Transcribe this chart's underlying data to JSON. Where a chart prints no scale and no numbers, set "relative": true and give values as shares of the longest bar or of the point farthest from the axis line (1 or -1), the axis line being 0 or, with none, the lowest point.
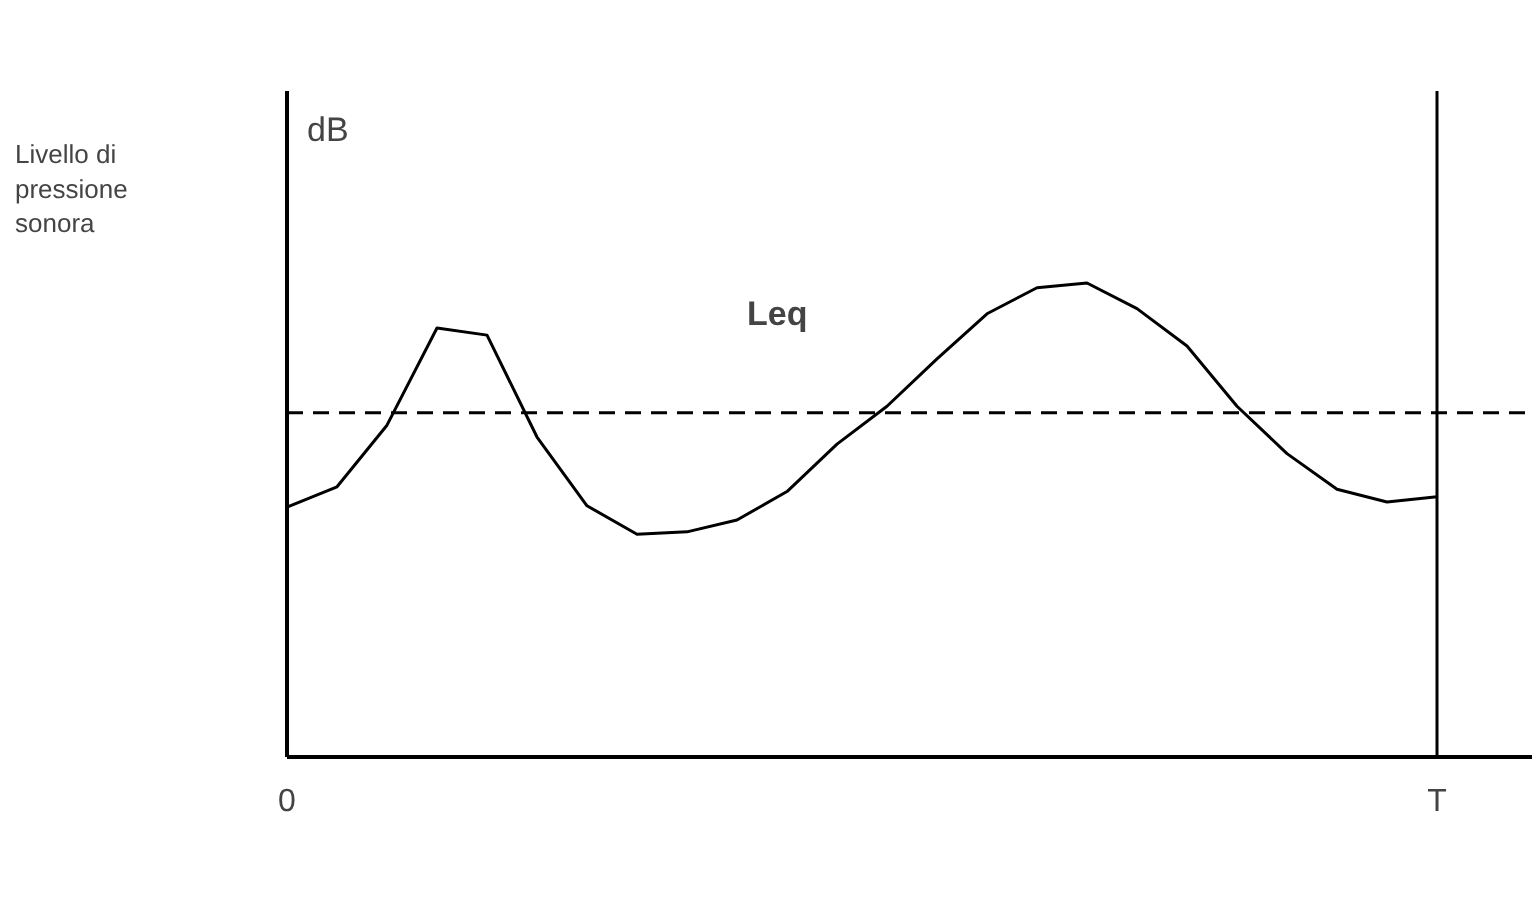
{
  "chart_data": {
    "type": "line",
    "relative": true,
    "annotations": [
      "dB",
      "Livello di pressione sonora"
    ],
    "categories": [
      "0",
      null,
      null,
      null,
      null,
      null,
      null,
      null,
      null,
      null,
      null,
      null,
      null,
      null,
      null,
      null,
      null,
      null,
      null,
      null,
      null,
      null,
      null,
      "T"
    ],
    "series": [
      {
        "color": "#000000",
        "values": [
          0.527,
          0.57,
          0.7,
          0.905,
          0.89,
          0.675,
          0.53,
          0.47,
          0.475,
          0.5,
          0.56,
          0.66,
          0.74,
          0.84,
          0.935,
          0.99,
          1.0,
          0.946,
          0.867,
          0.74,
          0.64,
          0.565,
          0.538,
          0.549
        ]
      }
    ],
    "ref_lines": [
      {
        "axis": "y",
        "value": 0.726,
        "label": "Leq",
        "color": "#000000",
        "line_style": "dashed"
      },
      {
        "axis": "x",
        "value": "T",
        "label": null,
        "color": "#000000",
        "line_style": "solid"
      }
    ],
    "marker": "none",
    "line_style": "solid"
  }
}
